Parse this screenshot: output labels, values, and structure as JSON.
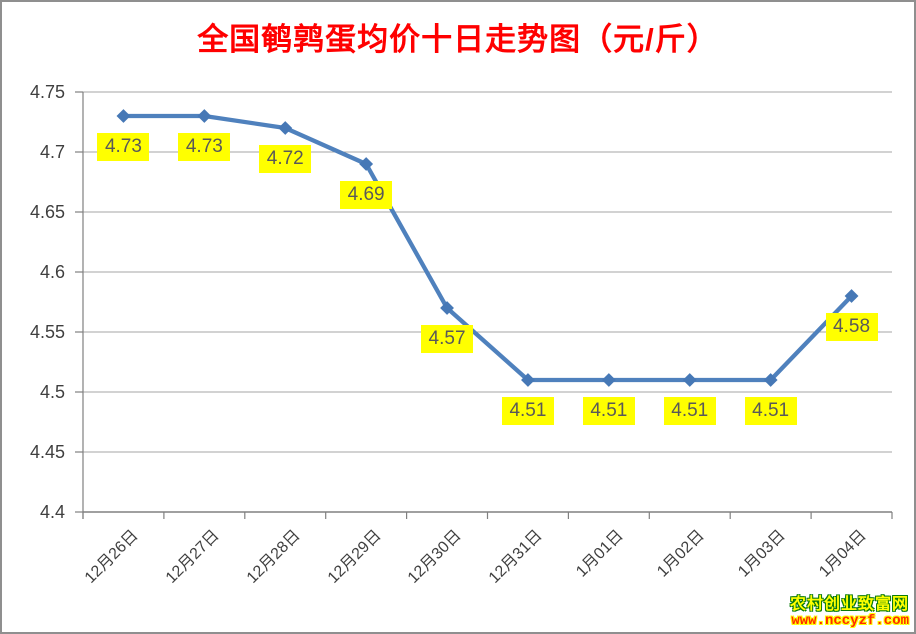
{
  "page": {
    "background": "#ffffff",
    "border_color": "#8f8f8f"
  },
  "header": {
    "title": "全国鹌鹑蛋均价十日走势图（元/斤）",
    "title_color": "#ff0000"
  },
  "chart_data": {
    "type": "line",
    "title": "全国鹌鹑蛋均价十日走势图（元/斤）",
    "categories": [
      "12月26日",
      "12月27日",
      "12月28日",
      "12月29日",
      "12月30日",
      "12月31日",
      "1月01日",
      "1月02日",
      "1月03日",
      "1月04日"
    ],
    "values": [
      4.73,
      4.73,
      4.72,
      4.69,
      4.57,
      4.51,
      4.51,
      4.51,
      4.51,
      4.58
    ],
    "data_labels": [
      "4.73",
      "4.73",
      "4.72",
      "4.69",
      "4.57",
      "4.51",
      "4.51",
      "4.51",
      "4.51",
      "4.58"
    ],
    "ytick_labels": [
      "4.75",
      "4.7",
      "4.65",
      "4.6",
      "4.55",
      "4.5",
      "4.45",
      "4.4"
    ],
    "ytick_values": [
      4.75,
      4.7,
      4.65,
      4.6,
      4.55,
      4.5,
      4.45,
      4.4
    ],
    "ylim": [
      4.4,
      4.75
    ],
    "xlabel": "",
    "ylabel": "",
    "grid": "horizontal",
    "legend": "none",
    "marker": "diamond",
    "colors": {
      "line": "#4f81bd",
      "marker": "#4678b6",
      "gridline": "#a6a6a6",
      "axis": "#808080",
      "data_label_bg": "#ffff00",
      "data_label_text": "#595959",
      "axis_text": "#3f3f3f"
    }
  },
  "watermark": {
    "line1": "农村创业致富网",
    "line2": "www.nccyzf.com",
    "line1_color": "#ffff00",
    "line1_outline": "#0a7a0a",
    "line2_color": "#ff2b00",
    "line2_outline": "#ffff00"
  }
}
